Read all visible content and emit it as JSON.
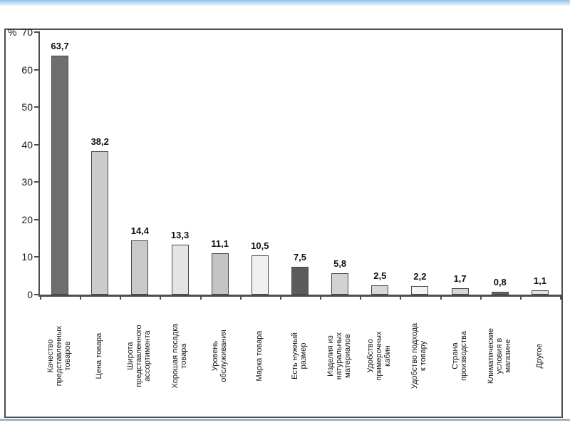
{
  "slide": {
    "background_color": "#ffffff",
    "top_border_color": "#8fc3ea",
    "bottom_border_color": "#8795a5",
    "frame_border_color": "#4d4d4d"
  },
  "chart_data": {
    "type": "bar",
    "title": "",
    "xlabel": "",
    "ylabel": "%",
    "ylim": [
      0,
      70
    ],
    "yticks": [
      0,
      10,
      20,
      30,
      40,
      50,
      60,
      70
    ],
    "grid": false,
    "legend": null,
    "categories": [
      "Качество\nпредставленных\nтоваров",
      "Цена товара",
      "Широта\nпредставленного\nассортимента",
      "Хорошая посадка\nтовара",
      "Уровень\nобслуживания",
      "Марка товара",
      "Есть нужный\nразмер",
      "Изделия из\nнатуральных\nматериалов",
      "Удобство\nпримерочных\nкабин",
      "Удобство подхода\nк товару",
      "Страна\nпроизводства",
      "Климатические\nусловия в\nмагазине",
      "Другое"
    ],
    "values": [
      63.7,
      38.2,
      14.4,
      13.3,
      11.1,
      10.5,
      7.5,
      5.8,
      2.5,
      2.2,
      1.7,
      0.8,
      1.1
    ],
    "value_labels": [
      "63,7",
      "38,2",
      "14,4",
      "13,3",
      "11,1",
      "10,5",
      "7,5",
      "5,8",
      "2,5",
      "2,2",
      "1,7",
      "0,8",
      "1,1"
    ],
    "bar_colors": [
      "#6e6e6e",
      "#cccccc",
      "#c9c9c9",
      "#e4e4e4",
      "#c4c4c4",
      "#f0f0f0",
      "#5c5c5c",
      "#d2d2d2",
      "#d8d8d8",
      "#f4f4f4",
      "#d6d6d6",
      "#666666",
      "#e2e2e2"
    ],
    "axis_color": "#4d4d4d",
    "label_reading_direction": "bottom-to-top"
  }
}
